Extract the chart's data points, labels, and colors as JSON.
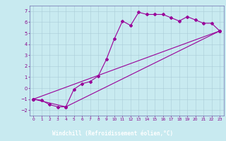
{
  "background_color": "#c8eaf0",
  "xlabel_bg_color": "#6060a0",
  "grid_color": "#aaccd8",
  "line_color": "#990099",
  "spine_color": "#7070b0",
  "tick_color": "#880088",
  "xlim": [
    -0.5,
    23.5
  ],
  "ylim": [
    -2.5,
    7.5
  ],
  "xticks": [
    0,
    1,
    2,
    3,
    4,
    5,
    6,
    7,
    8,
    9,
    10,
    11,
    12,
    13,
    14,
    15,
    16,
    17,
    18,
    19,
    20,
    21,
    22,
    23
  ],
  "yticks": [
    -2,
    -1,
    0,
    1,
    2,
    3,
    4,
    5,
    6,
    7
  ],
  "xlabel": "Windchill (Refroidissement éolien,°C)",
  "line1_x": [
    0,
    1,
    2,
    3,
    4,
    5,
    6,
    7,
    8,
    9,
    10,
    11,
    12,
    13,
    14,
    15,
    16,
    17,
    18,
    19,
    20,
    21,
    22,
    23
  ],
  "line1_y": [
    -1,
    -1.1,
    -1.5,
    -1.7,
    -1.7,
    -0.1,
    0.4,
    0.6,
    1.1,
    2.6,
    4.5,
    6.1,
    5.7,
    6.9,
    6.7,
    6.7,
    6.7,
    6.4,
    6.1,
    6.5,
    6.2,
    5.9,
    5.9,
    5.2
  ],
  "line2_x": [
    0,
    23
  ],
  "line2_y": [
    -1,
    5.2
  ],
  "line3_x": [
    0,
    4,
    23
  ],
  "line3_y": [
    -1,
    -1.7,
    5.2
  ],
  "marker_size": 2.0,
  "line_width": 0.8
}
